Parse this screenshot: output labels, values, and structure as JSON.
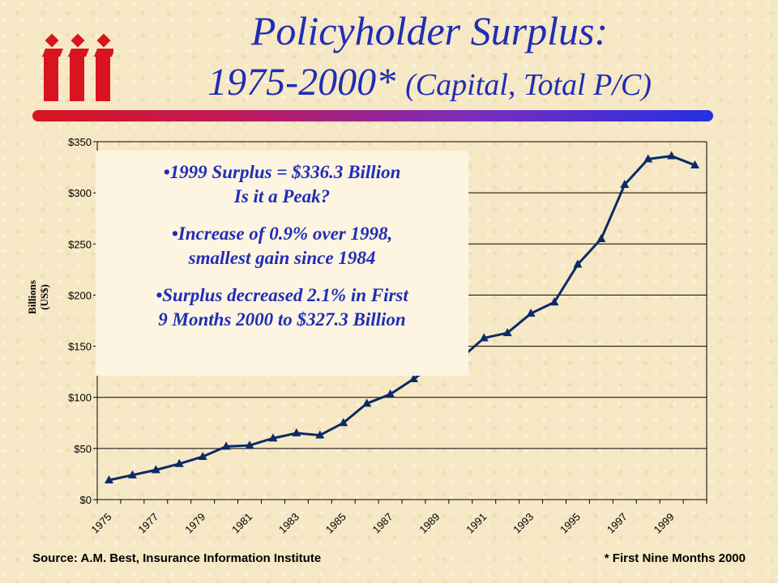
{
  "title": {
    "line1": "Policyholder Surplus:",
    "line2_main": "1975-2000*",
    "line2_sub": "(Capital, Total P/C)"
  },
  "logo": {
    "icon": "iii-logo",
    "color": "#d8141e"
  },
  "colors": {
    "title": "#1f2db5",
    "series": "#0b2a66",
    "gridline": "#000000"
  },
  "callout": {
    "bullet1_line1": "•1999 Surplus = $336.3 Billion",
    "bullet1_line2": "Is it a Peak?",
    "bullet2_line1": "•Increase of 0.9% over 1998,",
    "bullet2_line2": "smallest gain since 1984",
    "bullet3_line1": "•Surplus decreased 2.1% in First",
    "bullet3_line2": "9 Months 2000 to $327.3 Billion"
  },
  "footer": {
    "source": "Source:  A.M. Best, Insurance Information Institute",
    "note": "* First Nine Months 2000"
  },
  "chart_data": {
    "type": "line",
    "ylabel": "Billions (US$)",
    "ylim": [
      0,
      350
    ],
    "yticks": [
      "$0",
      "$50",
      "$100",
      "$150",
      "$200",
      "$250",
      "$300",
      "$350"
    ],
    "grid": true,
    "x_tick_labels": [
      "1975",
      "1977",
      "1979",
      "1981",
      "1983",
      "1985",
      "1987",
      "1989",
      "1991",
      "1993",
      "1995",
      "1997",
      "1999"
    ],
    "categories": [
      "1975",
      "1976",
      "1977",
      "1978",
      "1979",
      "1980",
      "1981",
      "1982",
      "1983",
      "1984",
      "1985",
      "1986",
      "1987",
      "1988",
      "1989",
      "1990",
      "1991",
      "1992",
      "1993",
      "1994",
      "1995",
      "1996",
      "1997",
      "1998",
      "1999",
      "2000"
    ],
    "values": [
      19,
      24,
      29,
      35,
      42,
      52,
      53,
      60,
      65,
      63,
      75,
      94,
      103,
      118,
      134,
      138,
      158,
      163,
      182,
      193,
      230,
      255,
      308,
      333,
      336,
      327
    ]
  }
}
